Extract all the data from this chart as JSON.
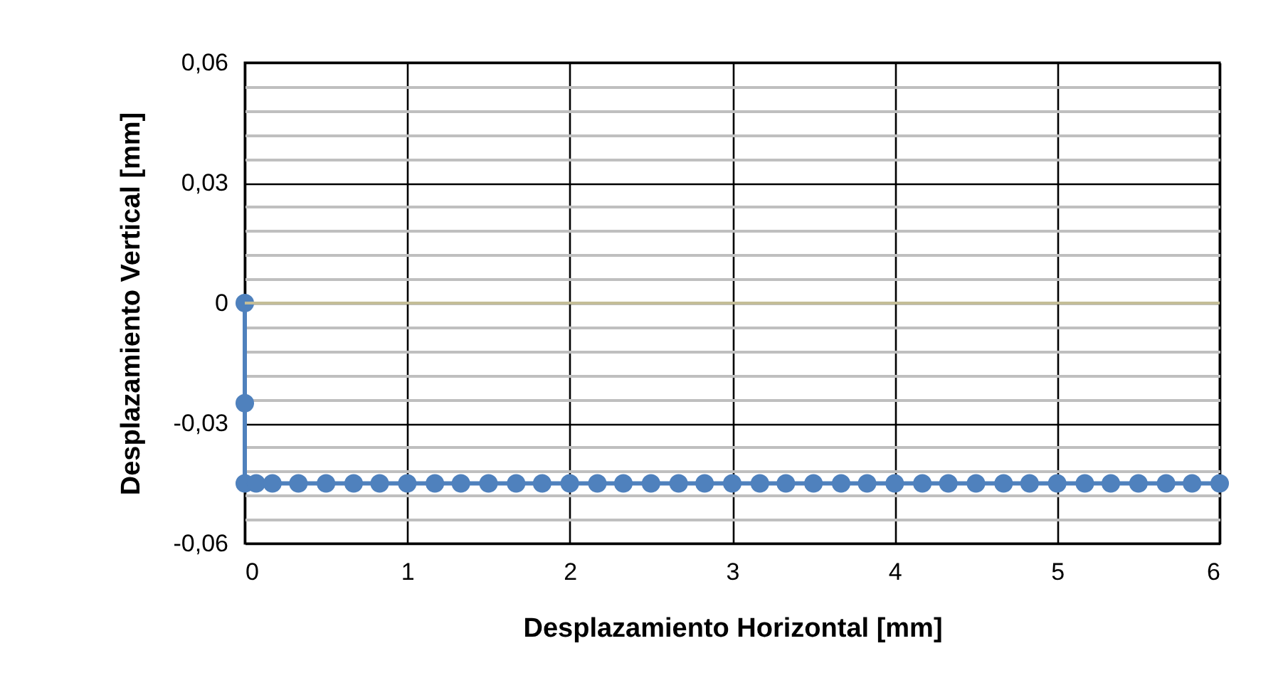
{
  "chart_data": {
    "type": "line",
    "xlabel": "Desplazamiento Horizontal [mm]",
    "ylabel": "Desplazamiento Vertical [mm]",
    "x": [
      0,
      0,
      0,
      0.07,
      0.17,
      0.33,
      0.5,
      0.67,
      0.83,
      1,
      1.17,
      1.33,
      1.5,
      1.67,
      1.83,
      2,
      2.17,
      2.33,
      2.5,
      2.67,
      2.83,
      3,
      3.17,
      3.33,
      3.5,
      3.67,
      3.83,
      4,
      4.17,
      4.33,
      4.5,
      4.67,
      4.83,
      5,
      5.17,
      5.33,
      5.5,
      5.67,
      5.83,
      6
    ],
    "series": [
      {
        "color": "#4f81bd",
        "values": [
          0,
          -0.025,
          -0.045,
          -0.045,
          -0.045,
          -0.045,
          -0.045,
          -0.045,
          -0.045,
          -0.045,
          -0.045,
          -0.045,
          -0.045,
          -0.045,
          -0.045,
          -0.045,
          -0.045,
          -0.045,
          -0.045,
          -0.045,
          -0.045,
          -0.045,
          -0.045,
          -0.045,
          -0.045,
          -0.045,
          -0.045,
          -0.045,
          -0.045,
          -0.045,
          -0.045,
          -0.045,
          -0.045,
          -0.045,
          -0.045,
          -0.045,
          -0.045,
          -0.045,
          -0.045,
          -0.045
        ]
      }
    ],
    "xlim": [
      0,
      6
    ],
    "xticks": [
      0,
      1,
      2,
      3,
      4,
      5,
      6
    ],
    "ylim": [
      -0.06,
      0.06
    ],
    "yticks": [
      {
        "value": -0.06,
        "label": "-0,06"
      },
      {
        "value": -0.054,
        "label": null
      },
      {
        "value": -0.048,
        "label": null
      },
      {
        "value": -0.042,
        "label": null
      },
      {
        "value": -0.036,
        "label": null
      },
      {
        "value": -0.03,
        "label": "-0,03"
      },
      {
        "value": -0.024,
        "label": null
      },
      {
        "value": -0.018,
        "label": null
      },
      {
        "value": -0.012,
        "label": null
      },
      {
        "value": -0.006,
        "label": null
      },
      {
        "value": 0,
        "label": "0"
      },
      {
        "value": 0.006,
        "label": null
      },
      {
        "value": 0.012,
        "label": null
      },
      {
        "value": 0.018,
        "label": null
      },
      {
        "value": 0.024,
        "label": null
      },
      {
        "value": 0.03,
        "label": "0,03"
      },
      {
        "value": 0.036,
        "label": null
      },
      {
        "value": 0.042,
        "label": null
      },
      {
        "value": 0.048,
        "label": null
      },
      {
        "value": 0.054,
        "label": null
      },
      {
        "value": 0.06,
        "label": "0,06"
      }
    ],
    "ref_lines": [
      {
        "axis": "y",
        "value": 0,
        "color": "#c4bd97"
      }
    ],
    "grid": true,
    "marker": "circle",
    "line_style": "solid"
  }
}
